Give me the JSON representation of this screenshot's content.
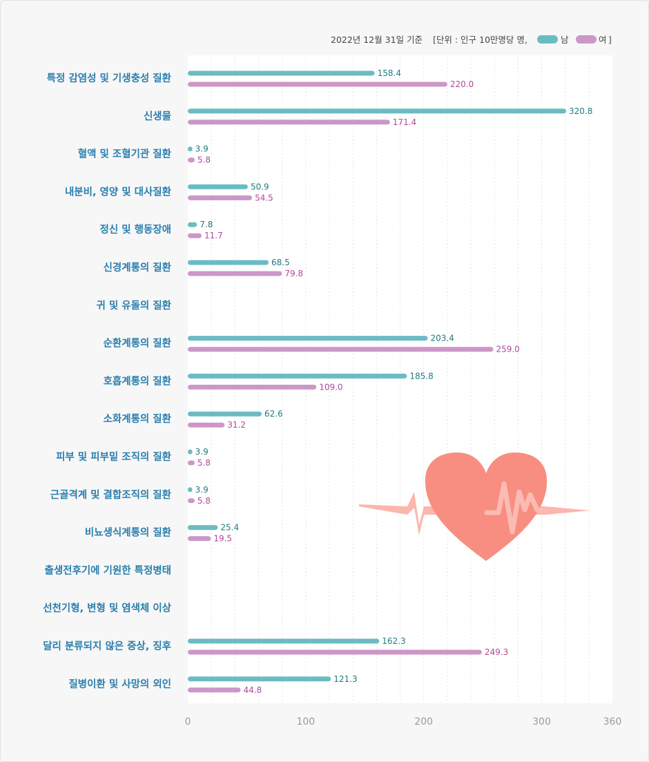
{
  "legend": {
    "note": "2022년 12월 31일 기준",
    "unit": "[단위 : 인구 10만명당 명,",
    "male": "남",
    "female": "여",
    "close": "]"
  },
  "colors": {
    "male": "#6bbcc2",
    "female": "#cc97c8",
    "category": "#2a7fae",
    "male_label": "#1f7a80",
    "female_label": "#b0489a",
    "heart": "#f7897b",
    "pulse": "#fbb3aa"
  },
  "chart_data": {
    "type": "bar",
    "orientation": "horizontal",
    "categories": [
      "특정 감염성 및 기생충성 질환",
      "신생물",
      "혈액 및 조혈기관 질환",
      "내분비, 영양 및 대사질환",
      "정신 및 행동장애",
      "신경계통의 질환",
      "귀 및 유돌의 질환",
      "순환계통의 질환",
      "호흡계통의 질환",
      "소화계통의 질환",
      "피부 및 피부밑 조직의 질환",
      "근골격계 및 결합조직의 질환",
      "비뇨생식계통의 질환",
      "출생전후기에 기원한 특정병태",
      "선천기형, 변형 및 염색체 이상",
      "달리 분류되지 않은 증상, 징후",
      "질병이환 및 사망의 외인"
    ],
    "series": [
      {
        "name": "남",
        "values": [
          158.4,
          320.8,
          3.9,
          50.9,
          7.8,
          68.5,
          null,
          203.4,
          185.8,
          62.6,
          3.9,
          3.9,
          25.4,
          null,
          null,
          162.3,
          121.3
        ]
      },
      {
        "name": "여",
        "values": [
          220.0,
          171.4,
          5.8,
          54.5,
          11.7,
          79.8,
          null,
          259.0,
          109.0,
          31.2,
          5.8,
          5.8,
          19.5,
          null,
          null,
          249.3,
          44.8
        ]
      }
    ],
    "xlim": [
      0,
      360
    ],
    "xticks": [
      0,
      100,
      200,
      300,
      360
    ],
    "grid": true,
    "legend_position": "top-right"
  }
}
